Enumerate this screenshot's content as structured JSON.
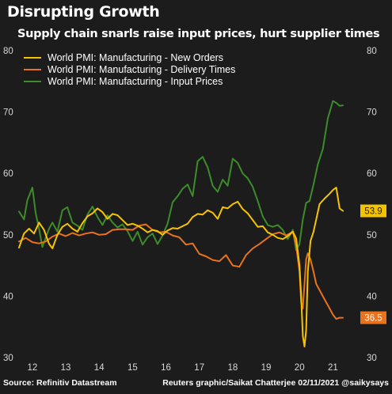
{
  "title": "Disrupting Growth",
  "subtitle": "Supply chain snarls raise input prices, hurt supplier times",
  "footer": {
    "source": "Source: Refinitiv Datastream",
    "credit": "Reuters graphic/Saikat Chatterjee 02/11/2021 @saikysays"
  },
  "chart_data": {
    "type": "line",
    "title": "Disrupting Growth",
    "subtitle": "Supply chain snarls raise input prices, hurt supplier times",
    "xlabel": "",
    "ylabel": "",
    "xlim": [
      2011.6,
      2021.75
    ],
    "ylim": [
      30,
      80
    ],
    "x_ticks": [
      12,
      13,
      14,
      15,
      16,
      17,
      18,
      19,
      20,
      21
    ],
    "x_tick_positions": [
      2012.0,
      2013.0,
      2014.0,
      2015.0,
      2016.0,
      2017.0,
      2018.0,
      2019.0,
      2020.0,
      2021.0
    ],
    "y_ticks": [
      30,
      40,
      50,
      60,
      70,
      80
    ],
    "y_tick_labels_left": [
      "30",
      "40",
      "50",
      "60",
      "70",
      "80"
    ],
    "y_tick_labels_right": [
      "30",
      "40",
      "50",
      "60",
      "70",
      "80"
    ],
    "grid": false,
    "legend_position": "top-left",
    "background": "#1c1c1c",
    "end_labels": [
      {
        "series": "World PMI: Manufacturing - New Orders",
        "text": "53.9",
        "value": 53.9,
        "color": "#f5c400",
        "text_color": "#1c1c1c"
      },
      {
        "series": "World PMI: Manufacturing - Delivery Times",
        "text": "36.5",
        "value": 36.5,
        "color": "#e8731c",
        "text_color": "#ffffff"
      }
    ],
    "series": [
      {
        "name": "World PMI: Manufacturing - New Orders",
        "color": "#f5c400",
        "x": [
          2011.6,
          2011.75,
          2011.9,
          2012.05,
          2012.2,
          2012.35,
          2012.5,
          2012.6,
          2012.75,
          2012.9,
          2013.05,
          2013.2,
          2013.35,
          2013.5,
          2013.65,
          2013.8,
          2013.95,
          2014.1,
          2014.25,
          2014.4,
          2014.55,
          2014.7,
          2014.85,
          2015.0,
          2015.15,
          2015.3,
          2015.45,
          2015.6,
          2015.75,
          2015.9,
          2016.05,
          2016.2,
          2016.35,
          2016.5,
          2016.65,
          2016.8,
          2016.95,
          2017.1,
          2017.25,
          2017.4,
          2017.55,
          2017.7,
          2017.85,
          2018.0,
          2018.15,
          2018.3,
          2018.45,
          2018.6,
          2018.75,
          2018.9,
          2019.05,
          2019.2,
          2019.35,
          2019.5,
          2019.65,
          2019.8,
          2019.9,
          2020.0,
          2020.05,
          2020.1,
          2020.15,
          2020.2,
          2020.25,
          2020.33,
          2020.42,
          2020.5,
          2020.6,
          2020.75,
          2020.9,
          2021.0,
          2021.1,
          2021.2,
          2021.3
        ],
        "values": [
          47.9,
          50.2,
          51.0,
          50.2,
          52.0,
          50.8,
          48.5,
          47.8,
          50.0,
          51.3,
          51.8,
          51.0,
          50.5,
          51.9,
          53.0,
          53.5,
          54.3,
          53.7,
          52.6,
          53.4,
          53.2,
          52.4,
          51.6,
          51.8,
          51.5,
          51.0,
          50.4,
          50.8,
          50.6,
          50.0,
          50.7,
          51.1,
          51.0,
          51.4,
          51.8,
          52.9,
          53.4,
          53.3,
          54.0,
          53.6,
          52.6,
          54.5,
          54.3,
          55.0,
          55.4,
          54.2,
          53.5,
          52.4,
          51.3,
          51.4,
          50.4,
          50.0,
          49.5,
          49.3,
          49.8,
          50.5,
          49.4,
          45.0,
          40.0,
          33.5,
          31.8,
          34.5,
          44.0,
          49.0,
          50.5,
          52.5,
          55.0,
          55.9,
          56.7,
          57.3,
          57.7,
          54.3,
          53.9
        ]
      },
      {
        "name": "World PMI: Manufacturing - Delivery Times",
        "color": "#e8731c",
        "x": [
          2011.6,
          2011.8,
          2012.0,
          2012.2,
          2012.4,
          2012.6,
          2012.8,
          2013.0,
          2013.2,
          2013.4,
          2013.6,
          2013.8,
          2014.0,
          2014.2,
          2014.4,
          2014.6,
          2014.8,
          2015.0,
          2015.2,
          2015.4,
          2015.6,
          2015.8,
          2016.0,
          2016.2,
          2016.4,
          2016.6,
          2016.8,
          2017.0,
          2017.2,
          2017.4,
          2017.6,
          2017.8,
          2018.0,
          2018.2,
          2018.4,
          2018.6,
          2018.8,
          2019.0,
          2019.2,
          2019.4,
          2019.6,
          2019.8,
          2019.9,
          2020.0,
          2020.05,
          2020.1,
          2020.15,
          2020.2,
          2020.25,
          2020.33,
          2020.42,
          2020.5,
          2020.6,
          2020.75,
          2020.9,
          2021.0,
          2021.1,
          2021.2,
          2021.3
        ],
        "values": [
          48.9,
          49.5,
          48.8,
          48.6,
          48.9,
          49.7,
          50.2,
          49.8,
          50.3,
          49.9,
          50.2,
          50.4,
          50.0,
          50.1,
          50.8,
          50.9,
          50.9,
          50.8,
          51.5,
          51.7,
          50.8,
          50.4,
          50.5,
          49.9,
          49.6,
          48.4,
          48.6,
          46.9,
          46.5,
          45.9,
          45.7,
          46.7,
          45.0,
          44.8,
          46.7,
          47.8,
          48.5,
          49.3,
          50.1,
          50.4,
          49.9,
          50.5,
          48.2,
          44.0,
          39.0,
          38.0,
          42.0,
          46.0,
          47.0,
          46.0,
          44.0,
          42.0,
          41.0,
          39.5,
          38.0,
          37.0,
          36.3,
          36.5,
          36.5
        ]
      },
      {
        "name": "World PMI: Manufacturing - Input Prices",
        "color": "#3d8c2a",
        "x": [
          2011.6,
          2011.75,
          2011.85,
          2012.0,
          2012.1,
          2012.2,
          2012.3,
          2012.4,
          2012.5,
          2012.6,
          2012.75,
          2012.9,
          2013.05,
          2013.2,
          2013.35,
          2013.5,
          2013.65,
          2013.8,
          2013.95,
          2014.1,
          2014.25,
          2014.4,
          2014.55,
          2014.7,
          2014.85,
          2015.0,
          2015.15,
          2015.3,
          2015.45,
          2015.6,
          2015.75,
          2015.9,
          2016.05,
          2016.2,
          2016.35,
          2016.5,
          2016.65,
          2016.8,
          2016.95,
          2017.1,
          2017.25,
          2017.4,
          2017.55,
          2017.7,
          2017.85,
          2018.0,
          2018.15,
          2018.3,
          2018.45,
          2018.6,
          2018.75,
          2018.9,
          2019.05,
          2019.2,
          2019.35,
          2019.5,
          2019.65,
          2019.8,
          2019.9,
          2020.0,
          2020.1,
          2020.2,
          2020.3,
          2020.42,
          2020.55,
          2020.7,
          2020.85,
          2021.0,
          2021.1,
          2021.2,
          2021.3
        ],
        "values": [
          53.8,
          52.5,
          55.6,
          57.7,
          53.5,
          51.0,
          48.0,
          49.5,
          51.0,
          52.0,
          50.5,
          54.0,
          54.5,
          52.0,
          51.5,
          50.8,
          53.3,
          54.6,
          52.9,
          51.6,
          53.2,
          52.0,
          51.2,
          51.7,
          50.6,
          49.0,
          50.5,
          48.4,
          49.6,
          50.2,
          48.5,
          49.9,
          51.8,
          55.3,
          56.3,
          57.5,
          58.2,
          56.3,
          62.0,
          62.7,
          61.0,
          58.0,
          57.0,
          59.0,
          58.0,
          62.4,
          61.7,
          60.0,
          59.2,
          57.8,
          55.5,
          53.0,
          51.6,
          51.3,
          51.6,
          50.8,
          49.3,
          50.8,
          47.5,
          48.5,
          52.5,
          55.2,
          55.5,
          58.2,
          61.5,
          64.0,
          69.0,
          71.8,
          71.5,
          71.0,
          71.1
        ]
      }
    ]
  }
}
